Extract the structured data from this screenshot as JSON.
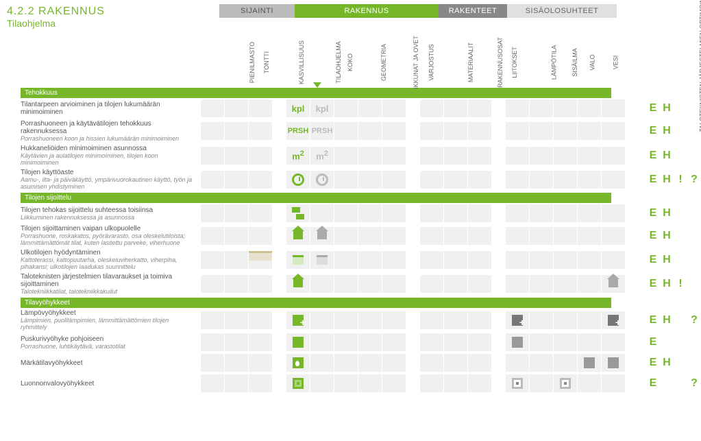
{
  "header": {
    "section": "4.2.2 RAKENNUS",
    "subtitle": "Tilaohjelma"
  },
  "tabs": [
    "SIJAINTI",
    "RAKENNUS",
    "RAKENTEET",
    "SISÄOLOSUHTEET"
  ],
  "columns": [
    "PIENILMASTO",
    "TONTTI",
    "KASVILLISUUS",
    "TILAOHJELMA",
    "KOKO",
    "GEOMETRIA",
    "IKKUNAT JA OVET",
    "VARJOSTUS",
    "MATERIAALIT",
    "RAKENNUSOSAT",
    "LIITOKSET",
    "LÄMPÖTILA",
    "SISÄILMA",
    "VALO",
    "VESI",
    "TALOTEKNISTEN JÄRJESTELMIEN OPTIMOINTI"
  ],
  "groups": [
    {
      "title": "Tehokkuus",
      "rows": [
        {
          "title": "Tilantarpeen arvioiminen ja tilojen lukumäärän minimoiminen",
          "desc": "",
          "cells": [
            "",
            "",
            "",
            "kpl-g",
            "kpl-gr",
            "",
            "",
            "",
            "",
            "",
            "",
            "",
            "",
            "",
            "",
            ""
          ],
          "flags": [
            "E",
            "H",
            "",
            ""
          ]
        },
        {
          "title": "Porrashuoneen ja käytävätilojen tehokkuus rakennuksessa",
          "desc": "Porrashuoneen koon ja hissien lukumäärän minimoiminen",
          "cells": [
            "",
            "",
            "",
            "PRSH-g",
            "PRSH-gr",
            "",
            "",
            "",
            "",
            "",
            "",
            "",
            "",
            "",
            "",
            ""
          ],
          "flags": [
            "E",
            "H",
            "",
            ""
          ]
        },
        {
          "title": "Hukkaneliöiden minimoiminen asunnossa",
          "desc": "Käytävien ja aulatilojen minimoiminen, tilojen koon minimoiminen",
          "cells": [
            "",
            "",
            "",
            "m2-g",
            "m2-gr",
            "",
            "",
            "",
            "",
            "",
            "",
            "",
            "",
            "",
            "",
            ""
          ],
          "flags": [
            "E",
            "H",
            "",
            ""
          ]
        },
        {
          "title": "Tilojen käyttöaste",
          "desc": "Aamu-, ilta- ja päiväkäyttö, ympärivuorokautinen käyttö, työn ja asumisen yhdistyminen",
          "cells": [
            "",
            "",
            "",
            "clock-g",
            "clock-gr",
            "",
            "",
            "",
            "",
            "",
            "",
            "",
            "",
            "",
            "",
            ""
          ],
          "flags": [
            "E",
            "H",
            "!",
            "?"
          ]
        }
      ]
    },
    {
      "title": "Tilojen sijoittelu",
      "rows": [
        {
          "title": "Tilojen tehokas sijoittelu suhteessa toisiinsa",
          "desc": "Liikkuminen rakennuksessa ja asunnossa",
          "cells": [
            "",
            "",
            "",
            "two-sq-g",
            "",
            "",
            "",
            "",
            "",
            "",
            "",
            "",
            "",
            "",
            "",
            ""
          ],
          "flags": [
            "E",
            "H",
            "",
            ""
          ]
        },
        {
          "title": "Tilojen sijoittaminen vaipan ulkopuolelle",
          "desc": "Porrashuone, roskakatos, pyörävarasto, osa oleskelutiloista; lämmittämättömät tilat, kuten lasitettu parveke, viherhuone",
          "cells": [
            "",
            "",
            "",
            "house-g",
            "house-gr",
            "",
            "",
            "",
            "",
            "",
            "",
            "",
            "",
            "",
            "",
            ""
          ],
          "flags": [
            "E",
            "H",
            "",
            ""
          ]
        },
        {
          "title": "Ulkotilojen hyödyntäminen",
          "desc": "Kattoterassi, kattopuutarha, oleskeluviherkatto, viherpiha, pihakansi; ulkotilojen laadukas suunnittelu",
          "cells": [
            "",
            "",
            "bar-sand",
            "bar-g",
            "bar-gr",
            "",
            "",
            "",
            "",
            "",
            "",
            "",
            "",
            "",
            "",
            ""
          ],
          "flags": [
            "E",
            "H",
            "",
            ""
          ]
        },
        {
          "title": "Taloteknisten järjestelmien tilavaraukset ja toimiva sijoittaminen",
          "desc": "Talotekniikkatilat, talotekniikkakuilut",
          "cells": [
            "",
            "",
            "",
            "house-g",
            "",
            "",
            "",
            "",
            "",
            "",
            "",
            "",
            "",
            "",
            "",
            "house-gr"
          ],
          "flags": [
            "E",
            "H",
            "!",
            ""
          ]
        }
      ]
    },
    {
      "title": "Tilavyöhykkeet",
      "rows": [
        {
          "title": "Lämpövyöhykkeet",
          "desc": "Lämpimien, puolilämpimien, lämmittämättömien tilojen ryhmittely",
          "cells": [
            "",
            "",
            "",
            "sq-g-plus",
            "",
            "",
            "",
            "",
            "",
            "",
            "",
            "sq-dk-plus",
            "",
            "",
            "",
            "sq-dk-plus"
          ],
          "flags": [
            "E",
            "H",
            "",
            "?"
          ]
        },
        {
          "title": "Puskurivyöhyke pohjoiseen",
          "desc": "Porrashuone, luhtikäytävä, varastotilat",
          "cells": [
            "",
            "",
            "",
            "sq-g",
            "",
            "",
            "",
            "",
            "",
            "",
            "",
            "sq-gr",
            "",
            "",
            "",
            ""
          ],
          "flags": [
            "E",
            "",
            "",
            ""
          ]
        },
        {
          "title": "Märkätilavyöhykkeet",
          "desc": "",
          "cells": [
            "",
            "",
            "",
            "drop-g",
            "",
            "",
            "",
            "",
            "",
            "",
            "",
            "",
            "",
            "",
            "sq-gr",
            "sq-gr"
          ],
          "flags": [
            "E",
            "H",
            "",
            ""
          ]
        },
        {
          "title": "Luonnonvalovyöhykkeet",
          "desc": "",
          "cells": [
            "",
            "",
            "",
            "sq-nestedg",
            "",
            "",
            "",
            "",
            "",
            "",
            "",
            "sq-nested",
            "",
            "sq-nested",
            "",
            ""
          ],
          "flags": [
            "E",
            "",
            "",
            "?"
          ]
        }
      ]
    }
  ],
  "flag_labels": [
    "E",
    "H",
    "!",
    "?"
  ],
  "colors": {
    "green": "#76b72a",
    "grey": "#bbbbbb",
    "dark": "#777777",
    "bg": "#f0f0f0"
  }
}
